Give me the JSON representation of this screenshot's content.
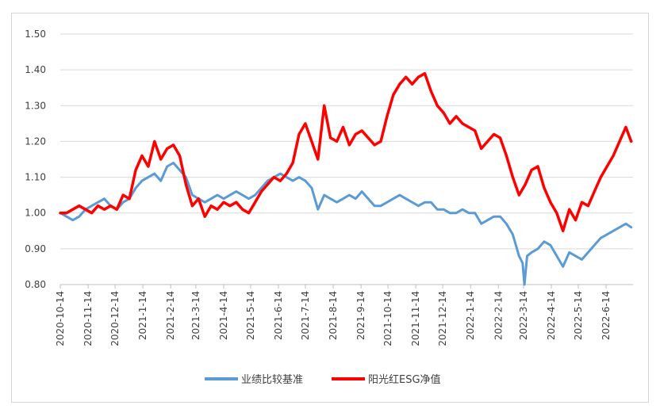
{
  "chart_data": {
    "type": "line",
    "title": "",
    "xlabel": "",
    "ylabel": "",
    "ylim": [
      0.8,
      1.5
    ],
    "y_ticks": [
      "0.80",
      "0.90",
      "1.00",
      "1.10",
      "1.20",
      "1.30",
      "1.40",
      "1.50"
    ],
    "x_ticks": [
      "2020-10-14",
      "2020-11-14",
      "2020-12-14",
      "2021-1-14",
      "2021-2-14",
      "2021-3-14",
      "2021-4-14",
      "2021-5-14",
      "2021-6-14",
      "2021-7-14",
      "2021-8-14",
      "2021-9-14",
      "2021-10-14",
      "2021-11-14",
      "2021-12-14",
      "2022-1-14",
      "2022-2-14",
      "2022-3-14",
      "2022-4-14",
      "2022-5-14",
      "2022-6-14"
    ],
    "x_range": [
      "2020-10-14",
      "2022-7-14"
    ],
    "grid": "horizontal",
    "legend_position": "bottom",
    "series": [
      {
        "name": "业绩比较基准",
        "color": "#5b9bd5",
        "points": [
          [
            "2020-10-14",
            1.0
          ],
          [
            "2020-10-21",
            0.99
          ],
          [
            "2020-10-28",
            0.98
          ],
          [
            "2020-11-04",
            0.99
          ],
          [
            "2020-11-11",
            1.01
          ],
          [
            "2020-11-18",
            1.02
          ],
          [
            "2020-11-25",
            1.03
          ],
          [
            "2020-12-02",
            1.04
          ],
          [
            "2020-12-09",
            1.02
          ],
          [
            "2020-12-16",
            1.01
          ],
          [
            "2020-12-23",
            1.03
          ],
          [
            "2020-12-30",
            1.04
          ],
          [
            "2021-01-06",
            1.07
          ],
          [
            "2021-01-13",
            1.09
          ],
          [
            "2021-01-20",
            1.1
          ],
          [
            "2021-01-27",
            1.11
          ],
          [
            "2021-02-03",
            1.09
          ],
          [
            "2021-02-10",
            1.13
          ],
          [
            "2021-02-17",
            1.14
          ],
          [
            "2021-02-24",
            1.12
          ],
          [
            "2021-03-03",
            1.1
          ],
          [
            "2021-03-10",
            1.05
          ],
          [
            "2021-03-17",
            1.04
          ],
          [
            "2021-03-24",
            1.03
          ],
          [
            "2021-03-31",
            1.04
          ],
          [
            "2021-04-07",
            1.05
          ],
          [
            "2021-04-14",
            1.04
          ],
          [
            "2021-04-21",
            1.05
          ],
          [
            "2021-04-28",
            1.06
          ],
          [
            "2021-05-05",
            1.05
          ],
          [
            "2021-05-12",
            1.04
          ],
          [
            "2021-05-19",
            1.05
          ],
          [
            "2021-05-26",
            1.07
          ],
          [
            "2021-06-02",
            1.09
          ],
          [
            "2021-06-09",
            1.1
          ],
          [
            "2021-06-16",
            1.11
          ],
          [
            "2021-06-23",
            1.1
          ],
          [
            "2021-06-30",
            1.09
          ],
          [
            "2021-07-07",
            1.1
          ],
          [
            "2021-07-14",
            1.09
          ],
          [
            "2021-07-21",
            1.07
          ],
          [
            "2021-07-28",
            1.01
          ],
          [
            "2021-08-04",
            1.05
          ],
          [
            "2021-08-11",
            1.04
          ],
          [
            "2021-08-18",
            1.03
          ],
          [
            "2021-08-25",
            1.04
          ],
          [
            "2021-09-01",
            1.05
          ],
          [
            "2021-09-08",
            1.04
          ],
          [
            "2021-09-15",
            1.06
          ],
          [
            "2021-09-22",
            1.04
          ],
          [
            "2021-09-29",
            1.02
          ],
          [
            "2021-10-06",
            1.02
          ],
          [
            "2021-10-13",
            1.03
          ],
          [
            "2021-10-20",
            1.04
          ],
          [
            "2021-10-27",
            1.05
          ],
          [
            "2021-11-03",
            1.04
          ],
          [
            "2021-11-10",
            1.03
          ],
          [
            "2021-11-17",
            1.02
          ],
          [
            "2021-11-24",
            1.03
          ],
          [
            "2021-12-01",
            1.03
          ],
          [
            "2021-12-08",
            1.01
          ],
          [
            "2021-12-15",
            1.01
          ],
          [
            "2021-12-22",
            1.0
          ],
          [
            "2021-12-29",
            1.0
          ],
          [
            "2022-01-05",
            1.01
          ],
          [
            "2022-01-12",
            1.0
          ],
          [
            "2022-01-19",
            1.0
          ],
          [
            "2022-01-26",
            0.97
          ],
          [
            "2022-02-02",
            0.98
          ],
          [
            "2022-02-09",
            0.99
          ],
          [
            "2022-02-16",
            0.99
          ],
          [
            "2022-02-23",
            0.97
          ],
          [
            "2022-03-02",
            0.94
          ],
          [
            "2022-03-09",
            0.88
          ],
          [
            "2022-03-13",
            0.86
          ],
          [
            "2022-03-15",
            0.8
          ],
          [
            "2022-03-18",
            0.88
          ],
          [
            "2022-03-23",
            0.89
          ],
          [
            "2022-03-30",
            0.9
          ],
          [
            "2022-04-06",
            0.92
          ],
          [
            "2022-04-13",
            0.91
          ],
          [
            "2022-04-20",
            0.88
          ],
          [
            "2022-04-27",
            0.85
          ],
          [
            "2022-05-04",
            0.89
          ],
          [
            "2022-05-11",
            0.88
          ],
          [
            "2022-05-18",
            0.87
          ],
          [
            "2022-05-25",
            0.89
          ],
          [
            "2022-06-01",
            0.91
          ],
          [
            "2022-06-08",
            0.93
          ],
          [
            "2022-06-15",
            0.94
          ],
          [
            "2022-06-22",
            0.95
          ],
          [
            "2022-06-29",
            0.96
          ],
          [
            "2022-07-06",
            0.97
          ],
          [
            "2022-07-12",
            0.96
          ]
        ]
      },
      {
        "name": "阳光红ESG净值",
        "color": "#ff0000",
        "points": [
          [
            "2020-10-14",
            1.0
          ],
          [
            "2020-10-21",
            1.0
          ],
          [
            "2020-10-28",
            1.01
          ],
          [
            "2020-11-04",
            1.02
          ],
          [
            "2020-11-11",
            1.01
          ],
          [
            "2020-11-18",
            1.0
          ],
          [
            "2020-11-25",
            1.02
          ],
          [
            "2020-12-02",
            1.01
          ],
          [
            "2020-12-09",
            1.02
          ],
          [
            "2020-12-16",
            1.01
          ],
          [
            "2020-12-23",
            1.05
          ],
          [
            "2020-12-30",
            1.04
          ],
          [
            "2021-01-06",
            1.12
          ],
          [
            "2021-01-13",
            1.16
          ],
          [
            "2021-01-20",
            1.13
          ],
          [
            "2021-01-27",
            1.2
          ],
          [
            "2021-02-03",
            1.15
          ],
          [
            "2021-02-10",
            1.18
          ],
          [
            "2021-02-17",
            1.19
          ],
          [
            "2021-02-24",
            1.16
          ],
          [
            "2021-03-03",
            1.08
          ],
          [
            "2021-03-10",
            1.02
          ],
          [
            "2021-03-17",
            1.04
          ],
          [
            "2021-03-24",
            0.99
          ],
          [
            "2021-03-31",
            1.02
          ],
          [
            "2021-04-07",
            1.01
          ],
          [
            "2021-04-14",
            1.03
          ],
          [
            "2021-04-21",
            1.02
          ],
          [
            "2021-04-28",
            1.03
          ],
          [
            "2021-05-05",
            1.01
          ],
          [
            "2021-05-12",
            1.0
          ],
          [
            "2021-05-19",
            1.03
          ],
          [
            "2021-05-26",
            1.06
          ],
          [
            "2021-06-02",
            1.08
          ],
          [
            "2021-06-09",
            1.1
          ],
          [
            "2021-06-16",
            1.09
          ],
          [
            "2021-06-23",
            1.11
          ],
          [
            "2021-06-30",
            1.14
          ],
          [
            "2021-07-07",
            1.22
          ],
          [
            "2021-07-14",
            1.25
          ],
          [
            "2021-07-21",
            1.2
          ],
          [
            "2021-07-28",
            1.15
          ],
          [
            "2021-08-04",
            1.3
          ],
          [
            "2021-08-11",
            1.21
          ],
          [
            "2021-08-18",
            1.2
          ],
          [
            "2021-08-25",
            1.24
          ],
          [
            "2021-09-01",
            1.19
          ],
          [
            "2021-09-08",
            1.22
          ],
          [
            "2021-09-15",
            1.23
          ],
          [
            "2021-09-22",
            1.21
          ],
          [
            "2021-09-29",
            1.19
          ],
          [
            "2021-10-06",
            1.2
          ],
          [
            "2021-10-13",
            1.27
          ],
          [
            "2021-10-20",
            1.33
          ],
          [
            "2021-10-27",
            1.36
          ],
          [
            "2021-11-03",
            1.38
          ],
          [
            "2021-11-10",
            1.36
          ],
          [
            "2021-11-17",
            1.38
          ],
          [
            "2021-11-24",
            1.39
          ],
          [
            "2021-12-01",
            1.34
          ],
          [
            "2021-12-08",
            1.3
          ],
          [
            "2021-12-15",
            1.28
          ],
          [
            "2021-12-22",
            1.25
          ],
          [
            "2021-12-29",
            1.27
          ],
          [
            "2022-01-05",
            1.25
          ],
          [
            "2022-01-12",
            1.24
          ],
          [
            "2022-01-19",
            1.23
          ],
          [
            "2022-01-26",
            1.18
          ],
          [
            "2022-02-02",
            1.2
          ],
          [
            "2022-02-09",
            1.22
          ],
          [
            "2022-02-16",
            1.21
          ],
          [
            "2022-02-23",
            1.16
          ],
          [
            "2022-03-02",
            1.1
          ],
          [
            "2022-03-09",
            1.05
          ],
          [
            "2022-03-16",
            1.08
          ],
          [
            "2022-03-23",
            1.12
          ],
          [
            "2022-03-30",
            1.13
          ],
          [
            "2022-04-06",
            1.07
          ],
          [
            "2022-04-13",
            1.03
          ],
          [
            "2022-04-20",
            1.0
          ],
          [
            "2022-04-27",
            0.95
          ],
          [
            "2022-05-04",
            1.01
          ],
          [
            "2022-05-11",
            0.98
          ],
          [
            "2022-05-18",
            1.03
          ],
          [
            "2022-05-25",
            1.02
          ],
          [
            "2022-06-01",
            1.06
          ],
          [
            "2022-06-08",
            1.1
          ],
          [
            "2022-06-15",
            1.13
          ],
          [
            "2022-06-22",
            1.16
          ],
          [
            "2022-06-29",
            1.2
          ],
          [
            "2022-07-06",
            1.24
          ],
          [
            "2022-07-12",
            1.2
          ]
        ]
      }
    ]
  }
}
